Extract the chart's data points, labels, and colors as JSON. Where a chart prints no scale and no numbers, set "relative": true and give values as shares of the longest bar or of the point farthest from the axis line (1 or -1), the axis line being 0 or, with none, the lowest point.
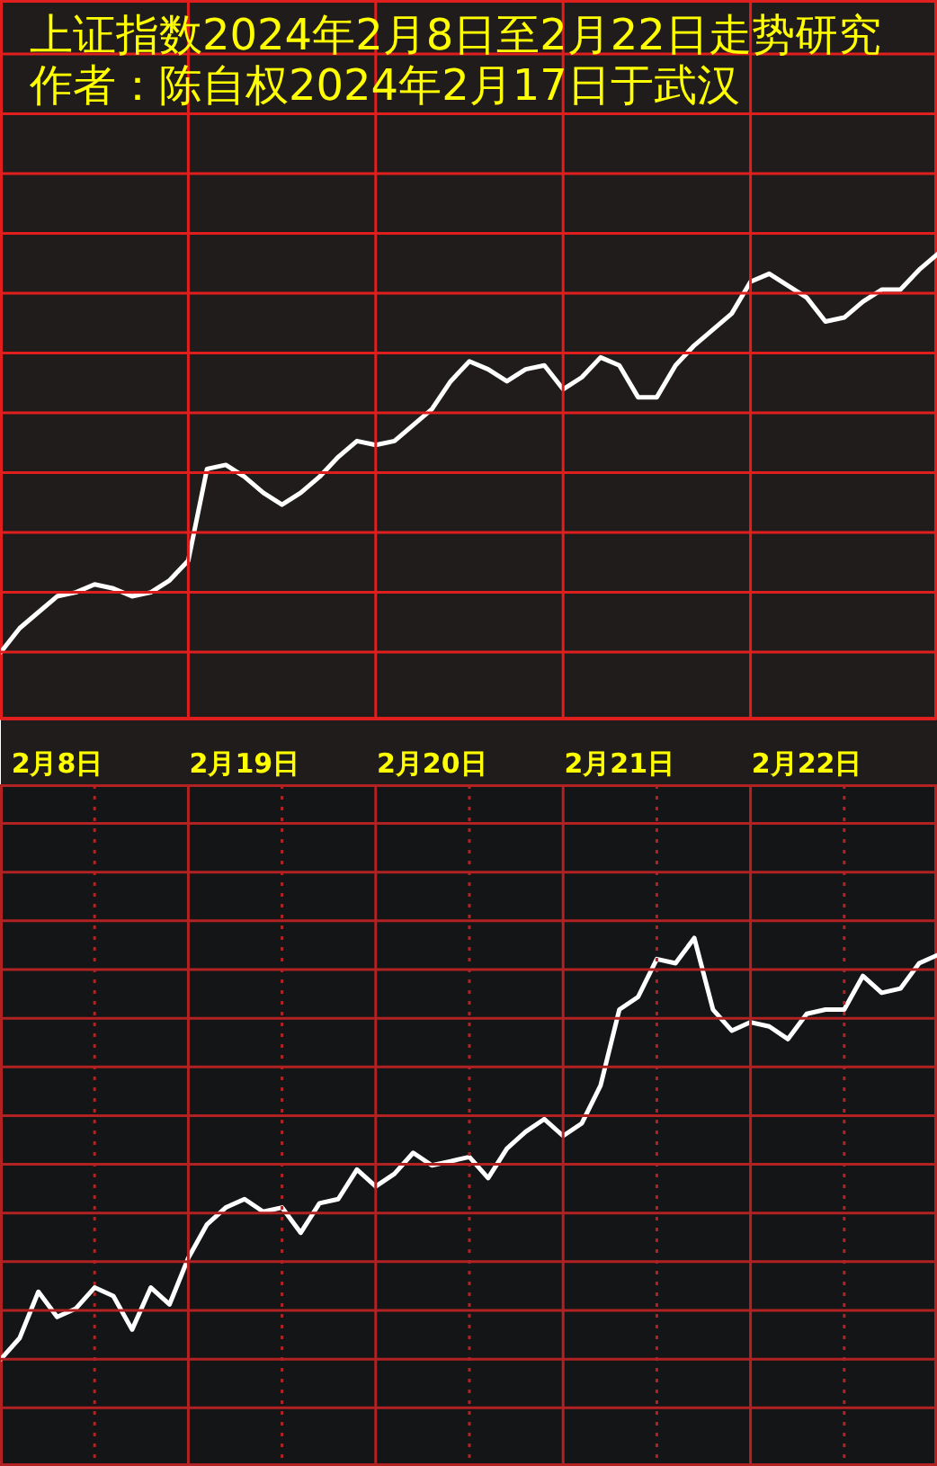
{
  "chart_data": [
    {
      "type": "line",
      "title": "上证指数2024年2月8日至2月22日走势研究",
      "subtitle": "作者：陈自权2024年2月17日于武汉",
      "relative": true,
      "grid": true,
      "categories": [
        null,
        null,
        null,
        "2月8日",
        null,
        null,
        null,
        null,
        null,
        null,
        null,
        null,
        null,
        "2月19日",
        null,
        null,
        null,
        null,
        null,
        null,
        null,
        null,
        null,
        "2月20日",
        null,
        null,
        null,
        null,
        null,
        null,
        null,
        null,
        null,
        "2月21日",
        null,
        null,
        null,
        null,
        null,
        null,
        null,
        null,
        null,
        "2月22日",
        null,
        null,
        null,
        null,
        null,
        null,
        null
      ],
      "series": [
        {
          "color": "#ffffff",
          "values": [
            0,
            0.06,
            0.1,
            0.14,
            0.15,
            0.17,
            0.16,
            0.14,
            0.15,
            0.18,
            0.23,
            0.46,
            0.47,
            0.44,
            0.4,
            0.37,
            0.4,
            0.44,
            0.49,
            0.53,
            0.52,
            0.53,
            0.57,
            0.61,
            0.68,
            0.73,
            0.71,
            0.68,
            0.71,
            0.72,
            0.66,
            0.69,
            0.74,
            0.72,
            0.64,
            0.64,
            0.72,
            0.77,
            0.81,
            0.85,
            0.93,
            0.95,
            0.92,
            0.89,
            0.83,
            0.84,
            0.88,
            0.91,
            0.91,
            0.96,
            1
          ]
        }
      ]
    },
    {
      "type": "line",
      "relative": true,
      "grid": true,
      "tick_labels": false,
      "categories": [
        null,
        null,
        null,
        null,
        null,
        null,
        null,
        null,
        null,
        null,
        null,
        null,
        null,
        null,
        null,
        null,
        null,
        null,
        null,
        null,
        null,
        null,
        null,
        null,
        null,
        null,
        null,
        null,
        null,
        null,
        null,
        null,
        null,
        null,
        null,
        null,
        null,
        null,
        null,
        null,
        null,
        null,
        null,
        null,
        null,
        null,
        null,
        null,
        null,
        null,
        null
      ],
      "series": [
        {
          "color": "#ffffff",
          "values": [
            0,
            0.05,
            0.16,
            0.1,
            0.12,
            0.17,
            0.15,
            0.07,
            0.17,
            0.13,
            0.24,
            0.32,
            0.36,
            0.38,
            0.35,
            0.36,
            0.3,
            0.37,
            0.38,
            0.45,
            0.41,
            0.44,
            0.49,
            0.46,
            0.47,
            0.48,
            0.43,
            0.5,
            0.54,
            0.57,
            0.53,
            0.56,
            0.65,
            0.83,
            0.86,
            0.95,
            0.94,
            1,
            0.83,
            0.78,
            0.8,
            0.79,
            0.76,
            0.82,
            0.83,
            0.83,
            0.91,
            0.87,
            0.88,
            0.94,
            0.96
          ]
        }
      ]
    }
  ]
}
